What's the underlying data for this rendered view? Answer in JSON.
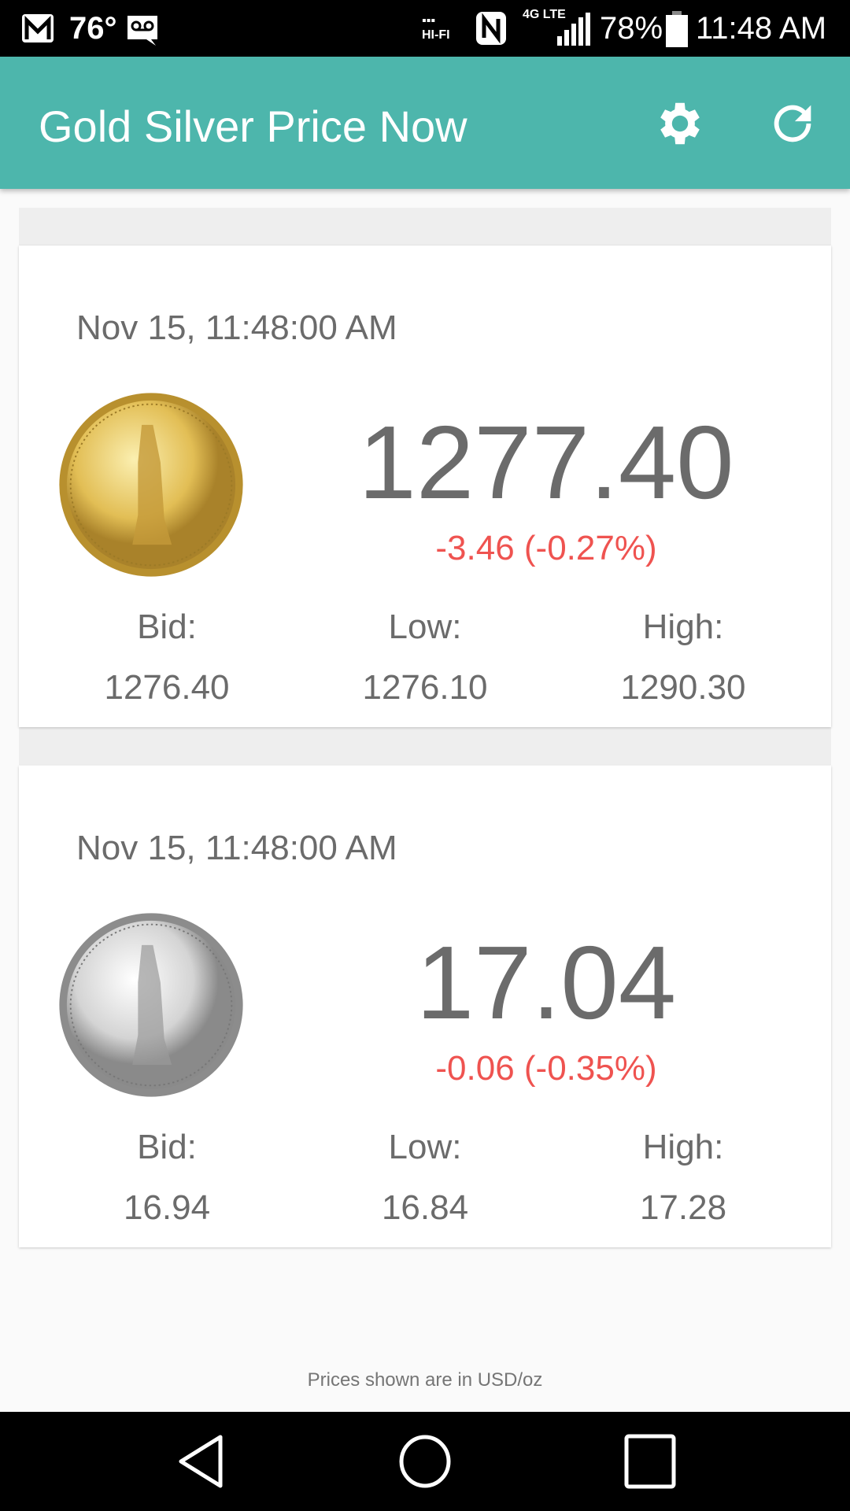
{
  "status_bar": {
    "temperature": "76°",
    "battery": "78%",
    "time": "11:48 AM",
    "network": "4G LTE",
    "icons": [
      "gmail-icon",
      "voicemail-icon",
      "hifi-icon",
      "nfc-icon",
      "signal-icon",
      "battery-icon"
    ]
  },
  "app_bar": {
    "title": "Gold Silver Price Now",
    "icons": [
      "gear-icon",
      "refresh-icon"
    ]
  },
  "colors": {
    "app_bar": "#4db6ac",
    "negative_change": "#ef5350"
  },
  "cards": [
    {
      "metal": "gold",
      "date": "Nov 15, 11:48:00 AM",
      "price": "1277.40",
      "change": "-3.46 (-0.27%)",
      "bid_label": "Bid:",
      "bid": "1276.40",
      "low_label": "Low:",
      "low": "1276.10",
      "high_label": "High:",
      "high": "1290.30"
    },
    {
      "metal": "silver",
      "date": "Nov 15, 11:48:00 AM",
      "price": "17.04",
      "change": "-0.06 (-0.35%)",
      "bid_label": "Bid:",
      "bid": "16.94",
      "low_label": "Low:",
      "low": "16.84",
      "high_label": "High:",
      "high": "17.28"
    }
  ],
  "footer": "Prices shown are in USD/oz"
}
